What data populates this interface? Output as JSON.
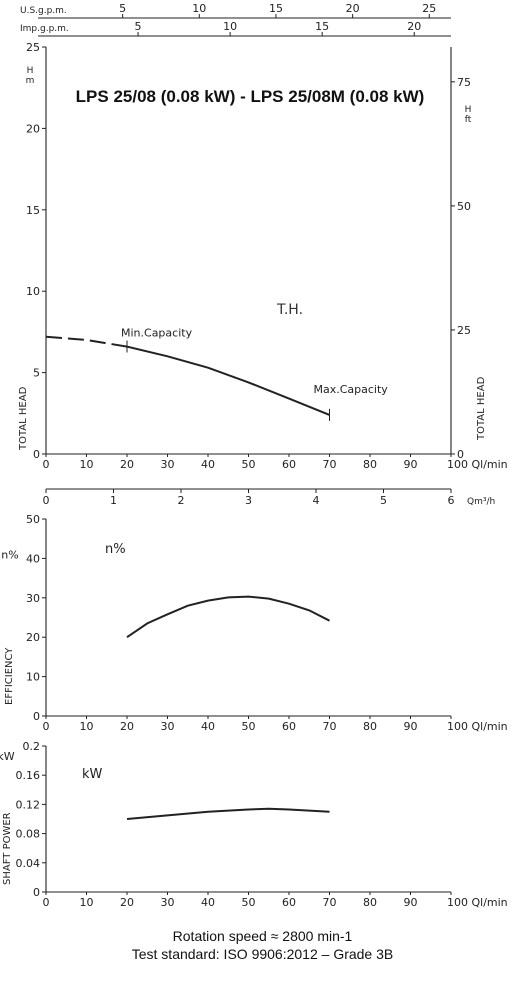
{
  "title": "LPS 25/08 (0.08 kW) - LPS 25/08M (0.08 kW)",
  "chart_data": [
    {
      "id": "head",
      "type": "line",
      "xlabel": "Ql/min",
      "ylabel": "TOTAL HEAD",
      "ylabel_right": "TOTAL HEAD",
      "y_unit_left": "H\nm",
      "y_unit_right": "H\nft",
      "curve_label": "T.H.",
      "xlim": [
        0,
        100
      ],
      "ylim": [
        0,
        25
      ],
      "x_ticks": [
        0,
        10,
        20,
        30,
        40,
        50,
        60,
        70,
        80,
        90,
        100
      ],
      "y_ticks": [
        0,
        5,
        10,
        15,
        20,
        25
      ],
      "y_ticks_right": [
        0,
        25,
        50,
        75
      ],
      "top_axes": [
        {
          "label": "U.S.g.p.m.",
          "ticks": [
            "5",
            "10",
            "15",
            "20",
            "25"
          ],
          "positions_qlmin": [
            18.93,
            37.85,
            56.78,
            75.71,
            94.64
          ]
        },
        {
          "label": "Imp.g.p.m.",
          "ticks": [
            "5",
            "10",
            "15",
            "20"
          ],
          "positions_qlmin": [
            22.73,
            45.46,
            68.19,
            90.92
          ]
        }
      ],
      "annotations": [
        {
          "text": "Min.Capacity",
          "x": 20,
          "y": 6.6
        },
        {
          "text": "Max.Capacity",
          "x": 70,
          "y": 2.4
        }
      ],
      "series": [
        {
          "style": "dashed",
          "x": [
            0,
            5,
            10,
            15,
            20
          ],
          "y": [
            7.2,
            7.1,
            7.0,
            6.8,
            6.6
          ]
        },
        {
          "style": "solid",
          "x": [
            20,
            30,
            40,
            50,
            60,
            70
          ],
          "y": [
            6.6,
            6.0,
            5.3,
            4.4,
            3.4,
            2.4
          ]
        }
      ]
    },
    {
      "id": "efficiency",
      "type": "line",
      "xlabel": "Ql/min",
      "ylabel": "EFFICIENCY",
      "y_unit_left": "n%",
      "curve_label": "n%",
      "xlim": [
        0,
        100
      ],
      "ylim": [
        0,
        50
      ],
      "x_ticks": [
        0,
        10,
        20,
        30,
        40,
        50,
        60,
        70,
        80,
        90,
        100
      ],
      "y_ticks": [
        0,
        10,
        20,
        30,
        40,
        50
      ],
      "top_axis": {
        "label": "Qm³/h",
        "ticks": [
          0,
          1,
          2,
          3,
          4,
          5,
          6
        ]
      },
      "series": [
        {
          "style": "solid",
          "x": [
            20,
            25,
            30,
            35,
            40,
            45,
            50,
            55,
            60,
            65,
            70
          ],
          "y": [
            20,
            23.5,
            25.8,
            28,
            29.3,
            30.1,
            30.3,
            29.8,
            28.5,
            26.8,
            24.2
          ]
        }
      ]
    },
    {
      "id": "power",
      "type": "line",
      "xlabel": "Ql/min",
      "ylabel": "SHAFT POWER",
      "y_unit_left": "kW",
      "curve_label": "kW",
      "xlim": [
        0,
        100
      ],
      "ylim": [
        0,
        0.2
      ],
      "x_ticks": [
        0,
        10,
        20,
        30,
        40,
        50,
        60,
        70,
        80,
        90,
        100
      ],
      "y_ticks": [
        0,
        0.04,
        0.08,
        0.12,
        0.16,
        0.2
      ],
      "series": [
        {
          "style": "solid",
          "x": [
            20,
            30,
            40,
            50,
            55,
            60,
            70
          ],
          "y": [
            0.1,
            0.105,
            0.11,
            0.113,
            0.114,
            0.113,
            0.11
          ]
        }
      ]
    }
  ],
  "footer": {
    "line1": "Rotation speed ≈ 2800 min-1",
    "line2": "Test standard: ISO 9906:2012 – Grade 3B"
  }
}
